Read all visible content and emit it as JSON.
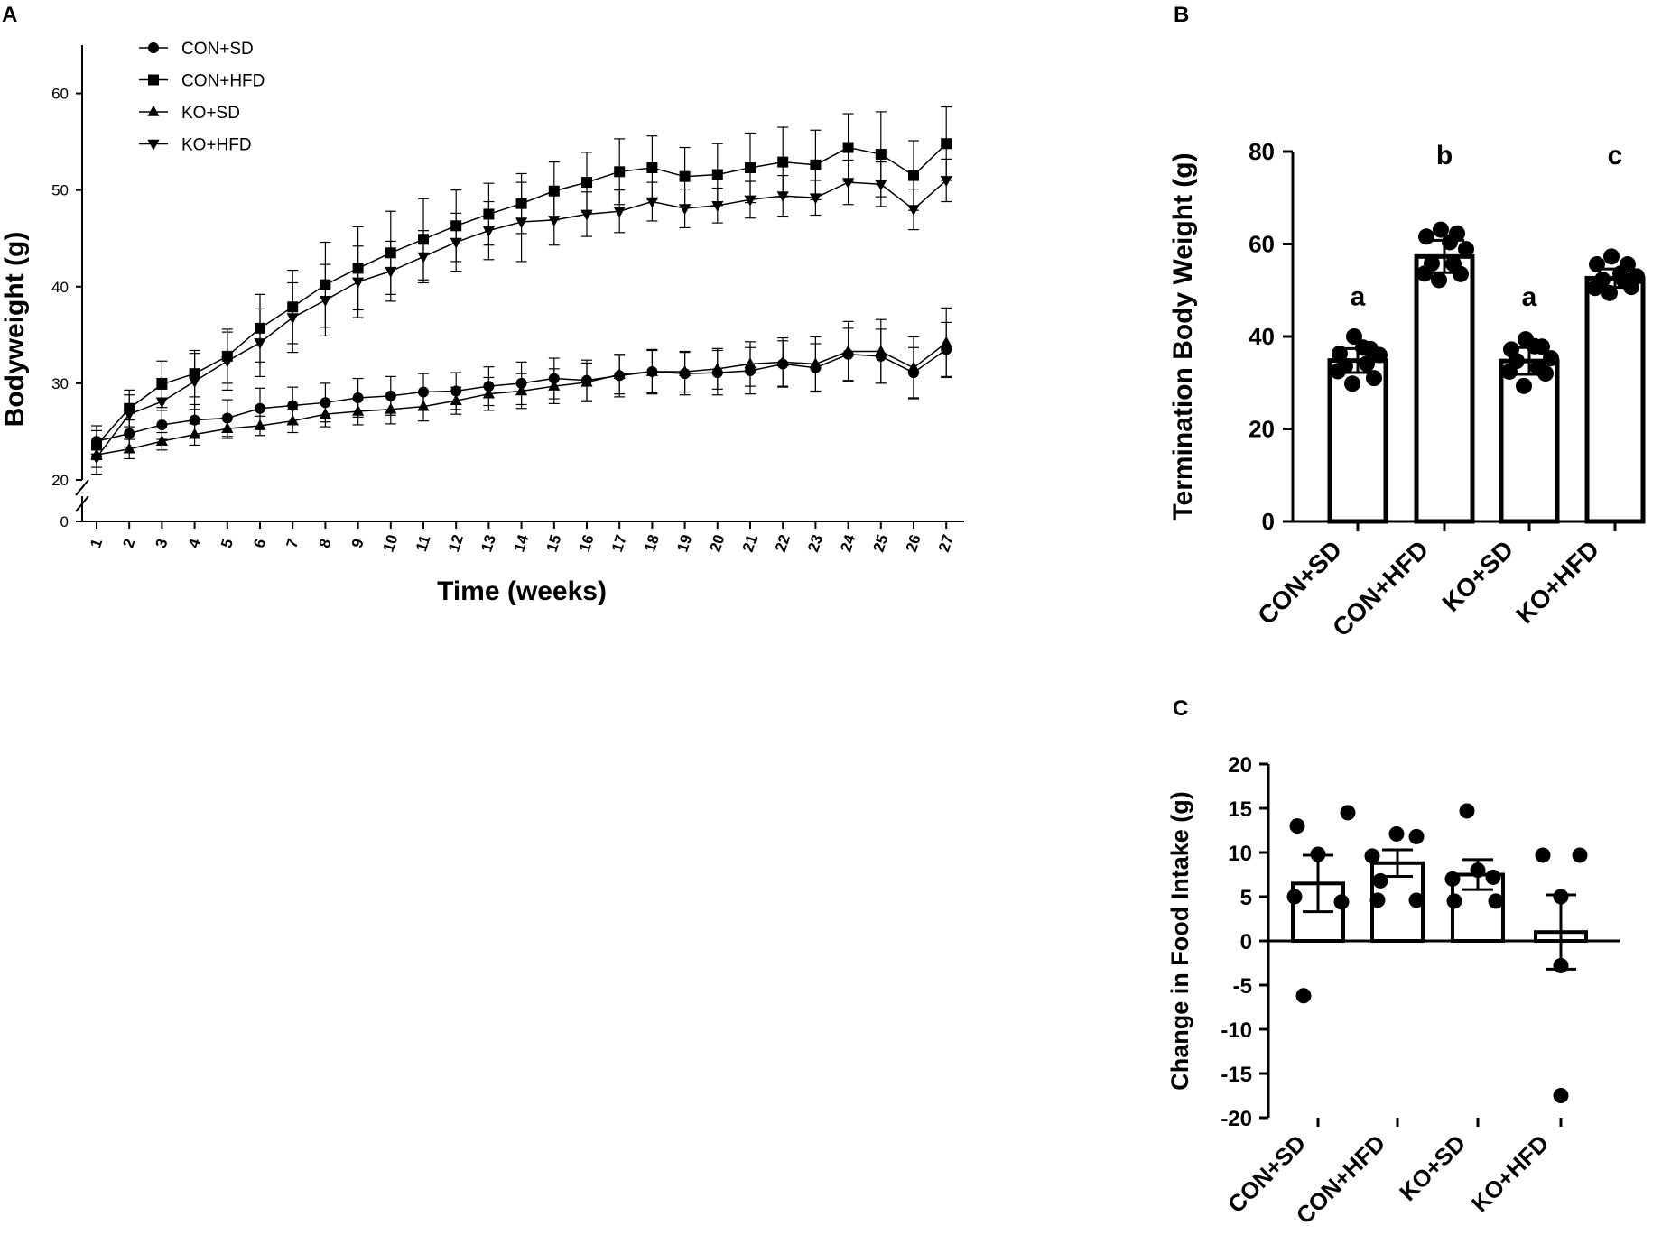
{
  "chart_data": [
    {
      "panel": "A",
      "type": "line",
      "xlabel": "Time (weeks)",
      "ylabel": "Bodyweight (g)",
      "x": [
        1,
        2,
        3,
        4,
        5,
        6,
        7,
        8,
        9,
        10,
        11,
        12,
        13,
        14,
        15,
        16,
        17,
        18,
        19,
        20,
        21,
        22,
        23,
        24,
        25,
        26,
        27
      ],
      "ylim": [
        20,
        65
      ],
      "yticks": [
        20,
        30,
        40,
        50,
        60
      ],
      "axis_break": {
        "lower_tick": "0",
        "break_from": 0,
        "break_to": 20
      },
      "legend_position": "top-left",
      "series": [
        {
          "name": "CON+SD",
          "marker": "circle",
          "values": [
            24.0,
            24.8,
            25.7,
            26.2,
            26.4,
            27.4,
            27.7,
            28.0,
            28.5,
            28.7,
            29.1,
            29.2,
            29.7,
            30.0,
            30.5,
            30.3,
            30.8,
            31.2,
            31.0,
            31.1,
            31.3,
            32.0,
            31.6,
            33.0,
            32.8,
            31.1,
            33.5
          ],
          "errors": [
            1.6,
            1.4,
            1.5,
            1.6,
            1.9,
            2.1,
            1.9,
            2.0,
            2.0,
            2.0,
            1.9,
            1.9,
            2.0,
            2.2,
            2.1,
            2.1,
            2.2,
            2.3,
            2.2,
            2.3,
            2.4,
            2.4,
            2.5,
            2.7,
            2.8,
            2.6,
            2.8
          ]
        },
        {
          "name": "CON+HFD",
          "marker": "square",
          "values": [
            23.6,
            27.4,
            29.9,
            31.0,
            32.8,
            35.7,
            37.9,
            40.2,
            41.9,
            43.5,
            44.9,
            46.3,
            47.5,
            48.6,
            49.9,
            50.8,
            51.9,
            52.3,
            51.4,
            51.6,
            52.3,
            52.9,
            52.6,
            54.4,
            53.7,
            51.5,
            54.8
          ],
          "errors": [
            1.5,
            1.9,
            2.4,
            2.4,
            2.8,
            3.5,
            3.8,
            4.4,
            4.3,
            4.3,
            4.2,
            3.7,
            3.2,
            3.1,
            3.0,
            3.1,
            3.4,
            3.3,
            3.0,
            3.2,
            3.6,
            3.6,
            3.6,
            3.5,
            4.4,
            3.6,
            3.8
          ]
        },
        {
          "name": "KO+SD",
          "marker": "triangle-up",
          "values": [
            22.6,
            23.2,
            24.0,
            24.7,
            25.3,
            25.6,
            26.1,
            26.8,
            27.1,
            27.3,
            27.6,
            28.2,
            28.9,
            29.2,
            29.7,
            30.1,
            30.9,
            31.2,
            31.2,
            31.5,
            32.0,
            32.2,
            32.0,
            33.3,
            33.3,
            31.6,
            34.2
          ],
          "errors": [
            1.3,
            1.0,
            0.9,
            1.1,
            1.0,
            1.0,
            1.2,
            1.3,
            1.4,
            1.5,
            1.5,
            1.4,
            1.7,
            1.8,
            1.8,
            2.0,
            2.0,
            2.2,
            2.1,
            2.1,
            2.3,
            2.5,
            2.8,
            3.1,
            3.3,
            3.2,
            3.6
          ]
        },
        {
          "name": "KO+HFD",
          "marker": "triangle-down",
          "values": [
            22.3,
            26.8,
            28.1,
            30.2,
            32.3,
            34.2,
            36.8,
            38.6,
            40.5,
            41.6,
            43.1,
            44.6,
            45.8,
            46.7,
            46.9,
            47.5,
            47.8,
            48.8,
            48.1,
            48.4,
            49.0,
            49.4,
            49.2,
            50.8,
            50.6,
            48.0,
            51.0
          ],
          "errors": [
            1.7,
            2.0,
            2.4,
            2.9,
            3.0,
            3.5,
            3.6,
            3.7,
            3.7,
            3.1,
            2.7,
            3.0,
            3.0,
            4.1,
            2.6,
            2.3,
            2.2,
            2.0,
            2.0,
            1.8,
            1.9,
            2.1,
            1.8,
            2.3,
            2.3,
            2.1,
            2.2
          ]
        }
      ]
    },
    {
      "panel": "B",
      "type": "bar",
      "ylabel": "Termination Body Weight (g)",
      "categories": [
        "CON+SD",
        "CON+HFD",
        "KO+SD",
        "KO+HFD"
      ],
      "values": [
        34.8,
        57.3,
        34.7,
        52.6
      ],
      "errors": [
        2.6,
        3.5,
        2.9,
        2.0
      ],
      "significance": [
        "a",
        "b",
        "a",
        "c"
      ],
      "ylim": [
        0,
        80
      ],
      "yticks": [
        0,
        20,
        40,
        60,
        80
      ],
      "points": [
        [
          40.0,
          37.3,
          36.3,
          37.6,
          36.0,
          33.6,
          34.1,
          32.5,
          31.0,
          29.8
        ],
        [
          63.1,
          62.3,
          61.6,
          60.4,
          58.9,
          55.8,
          55.7,
          53.6,
          53.5,
          52.2
        ],
        [
          39.4,
          37.8,
          37.2,
          37.9,
          35.3,
          34.7,
          33.2,
          32.4,
          32.0,
          29.3
        ],
        [
          57.3,
          55.6,
          55.6,
          53.6,
          53.0,
          52.3,
          52.1,
          50.5,
          50.7,
          49.4
        ]
      ]
    },
    {
      "panel": "C",
      "type": "bar",
      "ylabel": "Change in Food  Intake (g)",
      "categories": [
        "CON+SD",
        "CON+HFD",
        "KO+SD",
        "KO+HFD"
      ],
      "values": [
        6.5,
        8.8,
        7.5,
        1.0
      ],
      "errors": [
        3.2,
        1.5,
        1.7,
        4.2
      ],
      "ylim": [
        -20,
        20
      ],
      "yticks": [
        -20,
        -15,
        -10,
        -5,
        0,
        5,
        10,
        15,
        20
      ],
      "points": [
        [
          14.5,
          13.0,
          9.8,
          5.0,
          4.4,
          -6.2
        ],
        [
          12.1,
          11.8,
          9.6,
          6.8,
          4.6,
          4.6
        ],
        [
          14.7,
          8.0,
          7.2,
          7.0,
          4.5,
          4.5
        ],
        [
          9.7,
          9.7,
          5.0,
          -2.8,
          -17.5
        ]
      ]
    }
  ],
  "panels": {
    "a": "A",
    "b": "B",
    "c": "C"
  },
  "axis_break_lower_tick": "0"
}
